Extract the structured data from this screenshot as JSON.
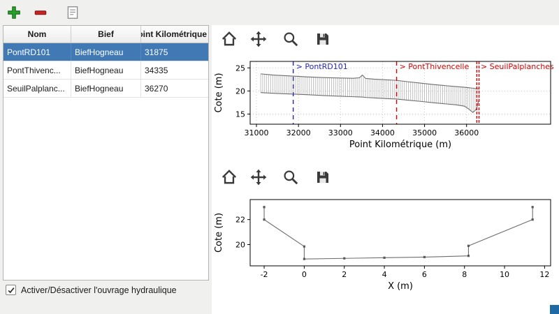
{
  "main_toolbar": {
    "buttons": [
      {
        "name": "add-ouvrage",
        "icon": "plus-icon",
        "color": "#27a327"
      },
      {
        "name": "remove-ouvrage",
        "icon": "minus-icon",
        "color": "#cc2222"
      },
      {
        "name": "edit-ouvrage",
        "icon": "document-icon",
        "color": "#8a8a8a"
      }
    ]
  },
  "table": {
    "headers": [
      "Nom",
      "Bief",
      "Point Kilométrique"
    ],
    "rows": [
      {
        "nom": "PontRD101",
        "bief": "BiefHogneau",
        "pk": "31875"
      },
      {
        "nom": "PontThivenc...",
        "bief": "BiefHogneau",
        "pk": "34335"
      },
      {
        "nom": "SeuilPalplanc...",
        "bief": "BiefHogneau",
        "pk": "36270"
      }
    ],
    "selected_row": 0,
    "selection_color": "#4179b5"
  },
  "checkbox": {
    "label": "Activer/Désactiver l'ouvrage hydraulique",
    "checked": true
  },
  "mpl_toolbar_icons": [
    "home-icon",
    "pan-icon",
    "zoom-icon",
    "save-icon"
  ],
  "colors": {
    "annotation_blue": "#2424cc",
    "annotation_red": "#dd0000",
    "profile_gray": "#a8a8a8",
    "line_gray": "#6e6e6e"
  },
  "chart_data": [
    {
      "type": "line",
      "title": "",
      "xlabel": "Point Kilométrique (m)",
      "ylabel": "Cote (m)",
      "xlim": [
        30850,
        38000
      ],
      "ylim": [
        12.8,
        26.4
      ],
      "xticks": [
        31000,
        32000,
        33000,
        34000,
        35000,
        36000
      ],
      "yticks": [
        15,
        20,
        25
      ],
      "grid": true,
      "hatch_between": true,
      "series": [
        {
          "name": "profil-haut",
          "x": [
            31100,
            31400,
            31800,
            32200,
            32600,
            33000,
            33300,
            33450,
            33520,
            33600,
            33800,
            34100,
            34335,
            34600,
            34900,
            35200,
            35500,
            35750,
            35950,
            36050,
            36150,
            36230,
            36300
          ],
          "y": [
            23.7,
            23.45,
            23.25,
            23.05,
            22.9,
            22.8,
            22.75,
            22.85,
            23.45,
            22.7,
            22.55,
            22.4,
            22.3,
            22.0,
            21.7,
            21.4,
            21.15,
            20.95,
            20.8,
            20.7,
            20.6,
            20.5,
            20.45
          ]
        },
        {
          "name": "profil-fond",
          "x": [
            31100,
            31400,
            31800,
            32200,
            32600,
            33000,
            33300,
            33450,
            33520,
            33600,
            33800,
            34100,
            34335,
            34600,
            34900,
            35200,
            35500,
            35750,
            35950,
            36050,
            36150,
            36230,
            36300
          ],
          "y": [
            19.65,
            19.5,
            19.35,
            19.2,
            19.0,
            18.85,
            18.75,
            18.7,
            18.68,
            18.6,
            18.5,
            18.35,
            18.25,
            18.0,
            17.75,
            17.45,
            17.2,
            17.0,
            16.7,
            16.1,
            15.35,
            16.0,
            18.2
          ]
        }
      ],
      "annotations": [
        {
          "label": "> PontRD101",
          "x": 31875,
          "color": "#2424cc",
          "style": "dashed"
        },
        {
          "label": "> PontThivencelle",
          "x": 34335,
          "color": "#dd0000",
          "style": "dashed"
        },
        {
          "label": "> SeuilPalplanches",
          "x": 36270,
          "color": "#dd0000",
          "style": "dashed-double"
        }
      ]
    },
    {
      "type": "line",
      "title": "",
      "xlabel": "X (m)",
      "ylabel": "Cote (m)",
      "xlim": [
        -2.7,
        12.3
      ],
      "ylim": [
        18.3,
        23.6
      ],
      "xticks": [
        -2,
        0,
        2,
        4,
        6,
        8,
        10,
        12
      ],
      "yticks": [
        20,
        22
      ],
      "grid": false,
      "hatch_between": false,
      "series": [
        {
          "name": "section-travers",
          "x": [
            -2,
            -2,
            0,
            0,
            2,
            4,
            6,
            8.2,
            8.2,
            11.4,
            11.4
          ],
          "y": [
            23,
            22,
            19.85,
            18.85,
            18.9,
            18.95,
            19.0,
            19.1,
            19.9,
            22,
            23
          ],
          "markers": true
        }
      ],
      "annotations": []
    }
  ]
}
